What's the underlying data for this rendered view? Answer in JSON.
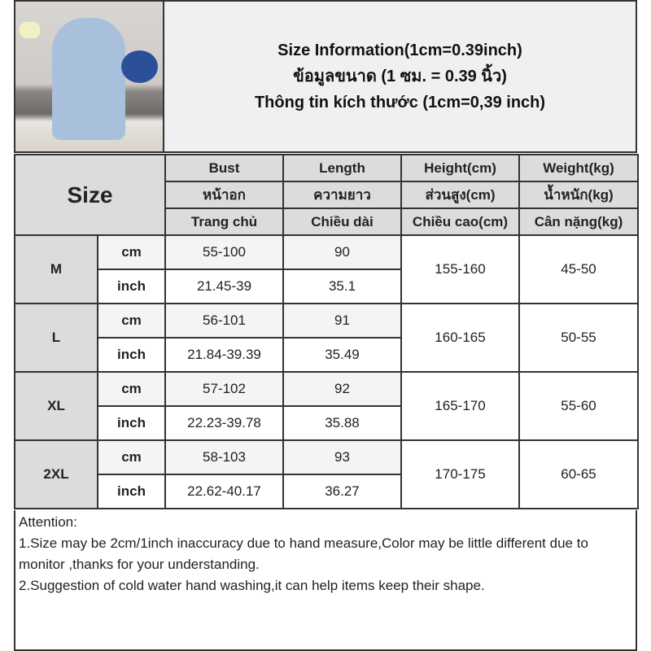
{
  "title_lines": [
    "Size Information(1cm=0.39inch)",
    "ข้อมูลขนาด (1 ซม. = 0.39 นิ้ว)",
    "Thông tin kích thước (1cm=0,39 inch)"
  ],
  "size_label": "Size",
  "headers": [
    [
      "Bust",
      "Length",
      "Height(cm)",
      "Weight(kg)"
    ],
    [
      "หน้าอก",
      "ความยาว",
      "ส่วนสูง(cm)",
      "น้ำหนัก(kg)"
    ],
    [
      "Trang chủ",
      "Chiều dài",
      "Chiều cao(cm)",
      "Cân nặng(kg)"
    ]
  ],
  "rows": [
    {
      "size": "M",
      "cm_label": "cm",
      "inch_label": "inch",
      "bust_cm": "55-100",
      "length_cm": "90",
      "bust_inch": "21.45-39",
      "length_inch": "35.1",
      "height": "155-160",
      "weight": "45-50"
    },
    {
      "size": "L",
      "cm_label": "cm",
      "inch_label": "inch",
      "bust_cm": "56-101",
      "length_cm": "91",
      "bust_inch": "21.84-39.39",
      "length_inch": "35.49",
      "height": "160-165",
      "weight": "50-55"
    },
    {
      "size": "XL",
      "cm_label": "cm",
      "inch_label": "inch",
      "bust_cm": "57-102",
      "length_cm": "92",
      "bust_inch": "22.23-39.78",
      "length_inch": "35.88",
      "height": "165-170",
      "weight": "55-60"
    },
    {
      "size": "2XL",
      "cm_label": "cm",
      "inch_label": "inch",
      "bust_cm": "58-103",
      "length_cm": "93",
      "bust_inch": "22.62-40.17",
      "length_inch": "36.27",
      "height": "170-175",
      "weight": "60-65"
    }
  ],
  "attention": [
    "Attention:",
    "1.Size may be 2cm/1inch inaccuracy due to hand measure,Color may be little different due to monitor ,thanks for your understanding.",
    "2.Suggestion of cold water hand washing,it can help items keep their shape."
  ]
}
